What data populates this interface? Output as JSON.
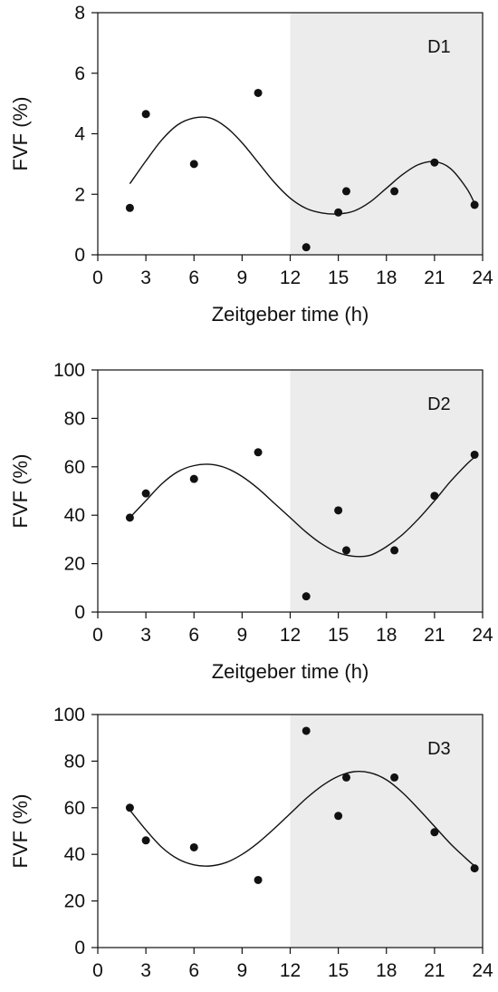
{
  "chart_data": [
    {
      "type": "scatter",
      "panel_label": "D1",
      "xlabel": "Zeitgeber time (h)",
      "ylabel": "FVF (%)",
      "xlim": [
        0,
        24
      ],
      "ylim": [
        0,
        8
      ],
      "xticks": [
        0,
        3,
        6,
        9,
        12,
        15,
        18,
        21,
        24
      ],
      "yticks": [
        0,
        2,
        4,
        6,
        8
      ],
      "dark_phase": [
        12,
        24
      ],
      "grid": false,
      "points": [
        {
          "x": 2,
          "y": 1.55
        },
        {
          "x": 3,
          "y": 4.65
        },
        {
          "x": 6,
          "y": 3.0
        },
        {
          "x": 10,
          "y": 5.35
        },
        {
          "x": 13,
          "y": 0.25
        },
        {
          "x": 15,
          "y": 1.4
        },
        {
          "x": 15.5,
          "y": 2.1
        },
        {
          "x": 18.5,
          "y": 2.1
        },
        {
          "x": 21,
          "y": 3.05
        },
        {
          "x": 23.5,
          "y": 1.65
        }
      ],
      "fit_curve": [
        [
          2,
          2.35
        ],
        [
          3,
          3.1
        ],
        [
          4,
          3.8
        ],
        [
          5,
          4.3
        ],
        [
          6,
          4.52
        ],
        [
          7,
          4.52
        ],
        [
          8,
          4.22
        ],
        [
          9,
          3.7
        ],
        [
          10,
          3.05
        ],
        [
          11,
          2.4
        ],
        [
          12,
          1.87
        ],
        [
          13,
          1.53
        ],
        [
          14,
          1.38
        ],
        [
          15,
          1.35
        ],
        [
          16,
          1.45
        ],
        [
          17,
          1.75
        ],
        [
          18,
          2.2
        ],
        [
          19,
          2.65
        ],
        [
          20,
          2.98
        ],
        [
          21,
          3.08
        ],
        [
          22,
          2.85
        ],
        [
          23,
          2.2
        ],
        [
          23.5,
          1.7
        ]
      ]
    },
    {
      "type": "scatter",
      "panel_label": "D2",
      "xlabel": "Zeitgeber time (h)",
      "ylabel": "FVF (%)",
      "xlim": [
        0,
        24
      ],
      "ylim": [
        0,
        100
      ],
      "xticks": [
        0,
        3,
        6,
        9,
        12,
        15,
        18,
        21,
        24
      ],
      "yticks": [
        0,
        20,
        40,
        60,
        80,
        100
      ],
      "dark_phase": [
        12,
        24
      ],
      "grid": false,
      "points": [
        {
          "x": 2,
          "y": 39
        },
        {
          "x": 3,
          "y": 49
        },
        {
          "x": 6,
          "y": 55
        },
        {
          "x": 10,
          "y": 66
        },
        {
          "x": 13,
          "y": 6.5
        },
        {
          "x": 15,
          "y": 42
        },
        {
          "x": 15.5,
          "y": 25.5
        },
        {
          "x": 18.5,
          "y": 25.5
        },
        {
          "x": 21,
          "y": 48
        },
        {
          "x": 23.5,
          "y": 65
        }
      ],
      "fit_curve": [
        [
          2,
          39
        ],
        [
          3,
          46
        ],
        [
          4,
          53
        ],
        [
          5,
          58
        ],
        [
          6,
          60.5
        ],
        [
          7,
          61
        ],
        [
          8,
          59.5
        ],
        [
          9,
          56
        ],
        [
          10,
          51
        ],
        [
          11,
          45
        ],
        [
          12,
          39
        ],
        [
          13,
          33
        ],
        [
          14,
          28
        ],
        [
          15,
          24.5
        ],
        [
          16,
          23
        ],
        [
          17,
          23.5
        ],
        [
          18,
          27
        ],
        [
          19,
          32
        ],
        [
          20,
          38.5
        ],
        [
          21,
          46
        ],
        [
          22,
          54
        ],
        [
          23,
          61
        ],
        [
          23.5,
          64
        ]
      ]
    },
    {
      "type": "scatter",
      "panel_label": "D3",
      "xlabel": "",
      "ylabel": "FVF (%)",
      "xlim": [
        0,
        24
      ],
      "ylim": [
        0,
        100
      ],
      "xticks": [
        0,
        3,
        6,
        9,
        12,
        15,
        18,
        21,
        24
      ],
      "yticks": [
        0,
        20,
        40,
        60,
        80,
        100
      ],
      "dark_phase": [
        12,
        24
      ],
      "grid": false,
      "points": [
        {
          "x": 2,
          "y": 60
        },
        {
          "x": 3,
          "y": 46
        },
        {
          "x": 6,
          "y": 43
        },
        {
          "x": 10,
          "y": 29
        },
        {
          "x": 13,
          "y": 93
        },
        {
          "x": 15,
          "y": 56.5
        },
        {
          "x": 15.5,
          "y": 73
        },
        {
          "x": 18.5,
          "y": 73
        },
        {
          "x": 21,
          "y": 49.5
        },
        {
          "x": 23.5,
          "y": 34
        }
      ],
      "fit_curve": [
        [
          2,
          59
        ],
        [
          3,
          50.5
        ],
        [
          4,
          43
        ],
        [
          5,
          38
        ],
        [
          6,
          35.5
        ],
        [
          7,
          35
        ],
        [
          8,
          36.5
        ],
        [
          9,
          40
        ],
        [
          10,
          45
        ],
        [
          11,
          51
        ],
        [
          12,
          57.5
        ],
        [
          13,
          64
        ],
        [
          14,
          69.5
        ],
        [
          15,
          73.5
        ],
        [
          16,
          75.5
        ],
        [
          17,
          75
        ],
        [
          18,
          72
        ],
        [
          19,
          66.5
        ],
        [
          20,
          59.5
        ],
        [
          21,
          52
        ],
        [
          22,
          44.5
        ],
        [
          23,
          38
        ],
        [
          23.5,
          35
        ]
      ]
    }
  ]
}
